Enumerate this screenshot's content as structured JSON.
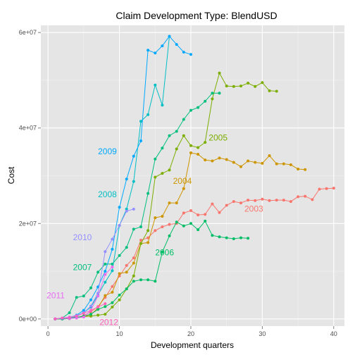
{
  "chart_data": {
    "type": "line",
    "title": "Claim Development  Type: BlendUSD",
    "xlabel": "Development quarters",
    "ylabel": "Cost",
    "xlim": [
      -1,
      41.5
    ],
    "ylim": [
      -1500000,
      61500000
    ],
    "x_ticks": [
      0,
      10,
      20,
      30,
      40
    ],
    "x_tick_labels": [
      "0",
      "10",
      "20",
      "30",
      "40"
    ],
    "y_ticks": [
      0,
      20000000,
      40000000,
      60000000
    ],
    "y_tick_labels": [
      "0e+00",
      "2e+07",
      "4e+07",
      "6e+07"
    ],
    "grid": true,
    "legend": "none",
    "series": [
      {
        "name": "2003",
        "color": "#F8766D",
        "label_at": [
          27.5,
          22500000
        ],
        "x": [
          1,
          2,
          3,
          4,
          5,
          6,
          7,
          8,
          9,
          10,
          11,
          12,
          13,
          14,
          15,
          16,
          17,
          18,
          19,
          20,
          21,
          22,
          23,
          24,
          25,
          26,
          27,
          28,
          29,
          30,
          31,
          32,
          33,
          34,
          35,
          36,
          37,
          38,
          39,
          40
        ],
        "y": [
          0,
          0,
          100000,
          300000,
          700000,
          1500000,
          2600000,
          4500000,
          6800000,
          9000000,
          11200000,
          12800000,
          16500000,
          17000000,
          18500000,
          19300000,
          19800000,
          20000000,
          22200000,
          22700000,
          21800000,
          21900000,
          24100000,
          22300000,
          23800000,
          24600000,
          24300000,
          24900000,
          24800000,
          25100000,
          24800000,
          24900000,
          24900000,
          24600000,
          25600000,
          25700000,
          25000000,
          27200000,
          27300000,
          27400000
        ]
      },
      {
        "name": "2004",
        "color": "#CD9600",
        "label_at": [
          17.5,
          28300000
        ],
        "x": [
          1,
          2,
          3,
          4,
          5,
          6,
          7,
          8,
          9,
          10,
          11,
          12,
          13,
          14,
          15,
          16,
          17,
          18,
          19,
          20,
          21,
          22,
          23,
          24,
          25,
          26,
          27,
          28,
          29,
          30,
          31,
          32,
          33,
          34,
          35,
          36
        ],
        "y": [
          0,
          0,
          200000,
          300000,
          500000,
          900000,
          2300000,
          4900000,
          5600000,
          9500000,
          9800000,
          11700000,
          15800000,
          16000000,
          21200000,
          21500000,
          24300000,
          24300000,
          27300000,
          34800000,
          34500000,
          33300000,
          33100000,
          33700000,
          33400000,
          32800000,
          31900000,
          33100000,
          32800000,
          32600000,
          34200000,
          32500000,
          32500000,
          32300000,
          31400000,
          31300000
        ]
      },
      {
        "name": "2005",
        "color": "#7CAE00",
        "label_at": [
          22.5,
          37400000
        ],
        "x": [
          1,
          2,
          3,
          4,
          5,
          6,
          7,
          8,
          9,
          10,
          11,
          12,
          13,
          14,
          15,
          16,
          17,
          18,
          19,
          20,
          21,
          22,
          23,
          24,
          25,
          26,
          27,
          28,
          29,
          30,
          31,
          32
        ],
        "y": [
          0,
          0,
          100000,
          300000,
          500000,
          600000,
          800000,
          1000000,
          2500000,
          4000000,
          6300000,
          9000000,
          15800000,
          18500000,
          29700000,
          30500000,
          31200000,
          35600000,
          38400000,
          36300000,
          35900000,
          37000000,
          46100000,
          51500000,
          48800000,
          48700000,
          48800000,
          49400000,
          48700000,
          49500000,
          47800000,
          47700000
        ]
      },
      {
        "name": "2006",
        "color": "#00BE67",
        "label_at": [
          15,
          13300000
        ],
        "x": [
          1,
          2,
          3,
          4,
          5,
          6,
          7,
          8,
          9,
          10,
          11,
          12,
          13,
          14,
          15,
          16,
          17,
          18,
          19,
          20,
          21,
          22,
          23,
          24,
          25,
          26,
          27,
          28
        ],
        "y": [
          0,
          0,
          100000,
          300000,
          600000,
          1000000,
          2000000,
          2600000,
          3400000,
          5000000,
          6300000,
          7900000,
          8200000,
          8200000,
          7900000,
          14000000,
          17400000,
          20300000,
          19500000,
          20000000,
          18700000,
          20500000,
          17500000,
          17200000,
          17000000,
          16800000,
          17000000,
          16900000
        ]
      },
      {
        "name": "2007",
        "color": "#00BF7D",
        "label_at": [
          3.5,
          10200000
        ],
        "x": [
          1,
          2,
          3,
          4,
          5,
          6,
          7,
          8,
          9,
          10,
          11,
          12,
          13,
          14,
          15,
          16,
          17,
          18,
          19,
          20,
          21,
          22,
          23,
          24
        ],
        "y": [
          0,
          200000,
          1300000,
          4500000,
          4800000,
          6500000,
          9800000,
          11500000,
          11500000,
          13300000,
          15000000,
          18800000,
          19300000,
          26300000,
          33500000,
          35800000,
          38400000,
          39300000,
          41800000,
          43700000,
          44300000,
          45600000,
          47300000,
          47300000
        ]
      },
      {
        "name": "2008",
        "color": "#00BFC4",
        "label_at": [
          7,
          25500000
        ],
        "x": [
          1,
          2,
          3,
          4,
          5,
          6,
          7,
          8,
          9,
          10,
          11,
          12,
          13,
          14,
          15,
          16,
          17
        ],
        "y": [
          0,
          100000,
          200000,
          500000,
          1300000,
          2500000,
          5000000,
          7700000,
          10100000,
          19600000,
          23000000,
          28800000,
          41400000,
          42800000,
          49000000,
          44800000,
          59200000
        ]
      },
      {
        "name": "2009",
        "color": "#00A9FF",
        "label_at": [
          7,
          34500000
        ],
        "x": [
          1,
          2,
          3,
          4,
          5,
          6,
          7,
          8,
          9,
          10,
          11,
          12,
          13,
          14,
          15,
          16,
          17,
          18,
          19,
          20
        ],
        "y": [
          0,
          100000,
          300000,
          800000,
          1800000,
          4000000,
          6700000,
          10000000,
          14600000,
          23400000,
          29300000,
          34100000,
          37300000,
          56300000,
          55700000,
          57200000,
          59200000,
          57500000,
          55900000,
          55400000
        ]
      },
      {
        "name": "2010",
        "color": "#9590FF",
        "label_at": [
          3.5,
          16500000
        ],
        "x": [
          1,
          2,
          3,
          4,
          5,
          6,
          7,
          8,
          9,
          10,
          11,
          12
        ],
        "y": [
          0,
          200000,
          400000,
          700000,
          1300000,
          2700000,
          5400000,
          14100000,
          16700000,
          19600000,
          22600000,
          23000000
        ]
      },
      {
        "name": "2011",
        "color": "#E76BF3",
        "label_at": [
          -0.2,
          4300000
        ],
        "x": [
          1,
          2,
          3,
          4,
          5,
          6,
          7,
          8,
          9
        ],
        "y": [
          0,
          200000,
          100000,
          200000,
          400000,
          1800000,
          4800000,
          9300000,
          10900000
        ]
      },
      {
        "name": "2012",
        "color": "#FF62BC",
        "label_at": [
          7.2,
          -1300000
        ],
        "x": [
          1,
          2,
          3,
          4,
          5,
          6,
          7,
          8
        ],
        "y": [
          0,
          200000,
          300000,
          600000,
          1200000,
          1800000,
          2500000,
          3200000
        ]
      }
    ]
  }
}
